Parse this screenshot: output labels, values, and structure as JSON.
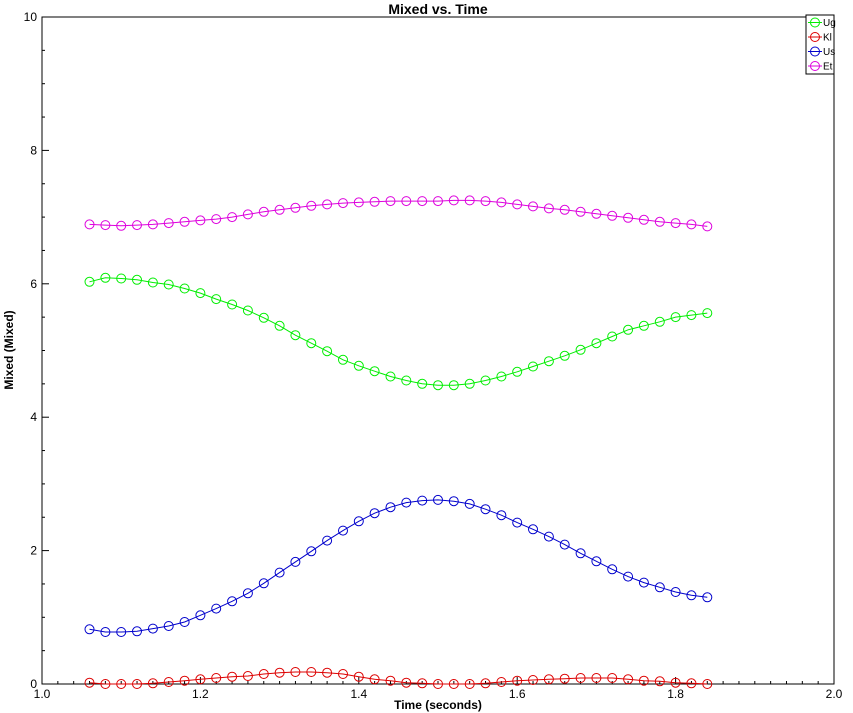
{
  "chart_data": {
    "type": "line",
    "title": "Mixed vs. Time",
    "xlabel": "Time (seconds)",
    "ylabel": "Mixed (Mixed)",
    "xlim": [
      1.0,
      2.0
    ],
    "ylim": [
      0,
      10
    ],
    "x_ticks": [
      "1.0",
      "1.2",
      "1.4",
      "1.6",
      "1.8",
      "2.0"
    ],
    "y_ticks": [
      "0",
      "2",
      "4",
      "6",
      "8",
      "10"
    ],
    "grid": false,
    "legend_position": "top-right",
    "marker": "open-circle",
    "x": [
      1.06,
      1.08,
      1.1,
      1.12,
      1.14,
      1.16,
      1.18,
      1.2,
      1.22,
      1.24,
      1.26,
      1.28,
      1.3,
      1.32,
      1.34,
      1.36,
      1.38,
      1.4,
      1.42,
      1.44,
      1.46,
      1.48,
      1.5,
      1.52,
      1.54,
      1.56,
      1.58,
      1.6,
      1.62,
      1.64,
      1.66,
      1.68,
      1.7,
      1.72,
      1.74,
      1.76,
      1.78,
      1.8,
      1.82,
      1.84
    ],
    "series": [
      {
        "name": "Ug",
        "color": "#00ee00",
        "values": [
          6.03,
          6.09,
          6.08,
          6.06,
          6.02,
          5.99,
          5.93,
          5.86,
          5.77,
          5.69,
          5.6,
          5.49,
          5.37,
          5.23,
          5.11,
          4.99,
          4.86,
          4.77,
          4.69,
          4.61,
          4.55,
          4.5,
          4.48,
          4.48,
          4.5,
          4.55,
          4.61,
          4.68,
          4.76,
          4.84,
          4.92,
          5.01,
          5.11,
          5.21,
          5.31,
          5.37,
          5.43,
          5.5,
          5.53,
          5.56
        ]
      },
      {
        "name": "Kl",
        "color": "#dd0000",
        "values": [
          0.02,
          0.0,
          0.0,
          0.0,
          0.01,
          0.03,
          0.05,
          0.07,
          0.09,
          0.11,
          0.12,
          0.15,
          0.17,
          0.18,
          0.18,
          0.17,
          0.15,
          0.11,
          0.07,
          0.05,
          0.02,
          0.01,
          0.0,
          0.0,
          0.0,
          0.01,
          0.03,
          0.05,
          0.06,
          0.07,
          0.08,
          0.09,
          0.09,
          0.09,
          0.07,
          0.05,
          0.04,
          0.02,
          0.01,
          0.0
        ]
      },
      {
        "name": "Us",
        "color": "#0000cc",
        "values": [
          0.82,
          0.78,
          0.78,
          0.79,
          0.83,
          0.87,
          0.93,
          1.03,
          1.13,
          1.24,
          1.36,
          1.51,
          1.67,
          1.83,
          1.99,
          2.15,
          2.3,
          2.44,
          2.56,
          2.65,
          2.72,
          2.75,
          2.76,
          2.74,
          2.7,
          2.62,
          2.53,
          2.42,
          2.32,
          2.21,
          2.09,
          1.96,
          1.84,
          1.72,
          1.61,
          1.52,
          1.45,
          1.38,
          1.33,
          1.3
        ]
      },
      {
        "name": "Et",
        "color": "#dd00dd",
        "values": [
          6.89,
          6.88,
          6.87,
          6.88,
          6.89,
          6.91,
          6.93,
          6.95,
          6.97,
          7.0,
          7.04,
          7.08,
          7.11,
          7.14,
          7.17,
          7.19,
          7.21,
          7.22,
          7.23,
          7.24,
          7.24,
          7.24,
          7.24,
          7.25,
          7.25,
          7.24,
          7.22,
          7.19,
          7.16,
          7.13,
          7.11,
          7.08,
          7.05,
          7.02,
          6.99,
          6.96,
          6.93,
          6.91,
          6.89,
          6.86
        ]
      }
    ]
  }
}
